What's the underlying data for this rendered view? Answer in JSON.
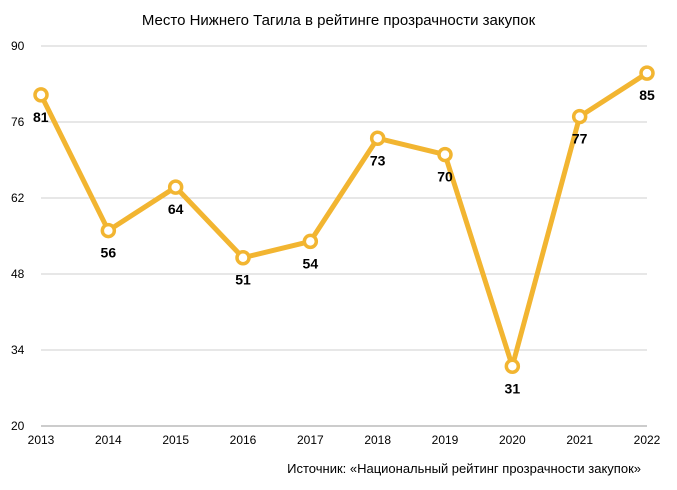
{
  "chart_data": {
    "type": "line",
    "title": "Место Нижнего Тагила в рейтинге прозрачности закупок",
    "source": "Источник:  «Национальный рейтинг прозрачности закупок»",
    "x": [
      "2013",
      "2014",
      "2015",
      "2016",
      "2017",
      "2018",
      "2019",
      "2020",
      "2021",
      "2022"
    ],
    "values": [
      81,
      56,
      64,
      51,
      54,
      73,
      70,
      31,
      77,
      85
    ],
    "data_labels": [
      "81",
      "56",
      "64",
      "51",
      "54",
      "73",
      "70",
      "31",
      "77",
      "85"
    ],
    "ylim": [
      20,
      90
    ],
    "yticks": [
      "20",
      "34",
      "48",
      "62",
      "76",
      "90"
    ],
    "grid": true,
    "line_color": "#F2B531",
    "marker_fill": "#FFFFFF"
  }
}
